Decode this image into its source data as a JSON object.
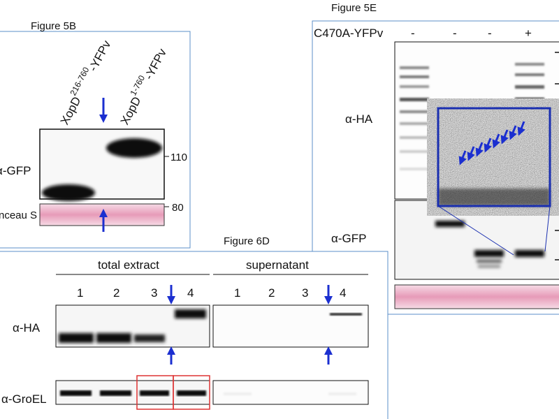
{
  "figure_5b": {
    "title": "Figure 5B",
    "lane_labels": [
      {
        "name": "XopD",
        "sup": "216-760",
        "suffix": "-YFPv"
      },
      {
        "name": "XopD",
        "sup": "1-760",
        "suffix": "-YFPv"
      }
    ],
    "antibody": "α-GFP",
    "markers": [
      "110",
      "80"
    ],
    "stain": "nceau S"
  },
  "figure_5e": {
    "title": "Figure 5E",
    "construct": "C470A-YFPv",
    "lanes": [
      "-",
      "-",
      "-",
      "+"
    ],
    "antibodies": [
      "α-HA",
      "α-GFP"
    ]
  },
  "figure_6d": {
    "title": "Figure 6D",
    "groups": [
      {
        "label": "total extract",
        "lanes": [
          "1",
          "2",
          "3",
          "4"
        ]
      },
      {
        "label": "supernatant",
        "lanes": [
          "1",
          "2",
          "3",
          "4"
        ]
      }
    ],
    "antibodies": [
      "α-HA",
      "α-GroEL"
    ]
  }
}
